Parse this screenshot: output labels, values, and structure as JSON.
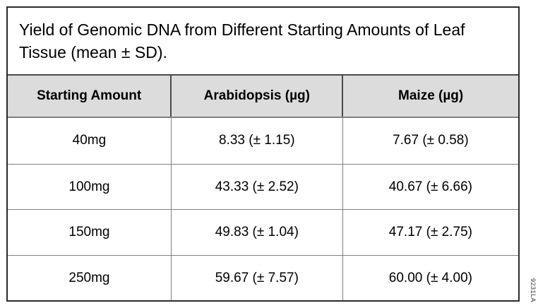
{
  "figure": {
    "title": "Yield of Genomic DNA from Different Starting Amounts of Leaf Tissue (mean ± SD).",
    "watermark": "9231LA"
  },
  "table": {
    "columns": [
      "Starting Amount",
      "Arabidopsis (µg)",
      "Maize (µg)"
    ],
    "rows": [
      [
        "40mg",
        "8.33 (± 1.15)",
        "7.67 (± 0.58)"
      ],
      [
        "100mg",
        "43.33 (± 2.52)",
        "40.67 (± 6.66)"
      ],
      [
        "150mg",
        "49.83 (± 1.04)",
        "47.17 (± 2.75)"
      ],
      [
        "250mg",
        "59.67 (± 7.57)",
        "60.00 (± 4.00)"
      ]
    ]
  },
  "colors": {
    "header_bg": "#dcdcdc",
    "grid_line": "#808080",
    "outer_border": "#2a2a2a",
    "text": "#000000"
  }
}
